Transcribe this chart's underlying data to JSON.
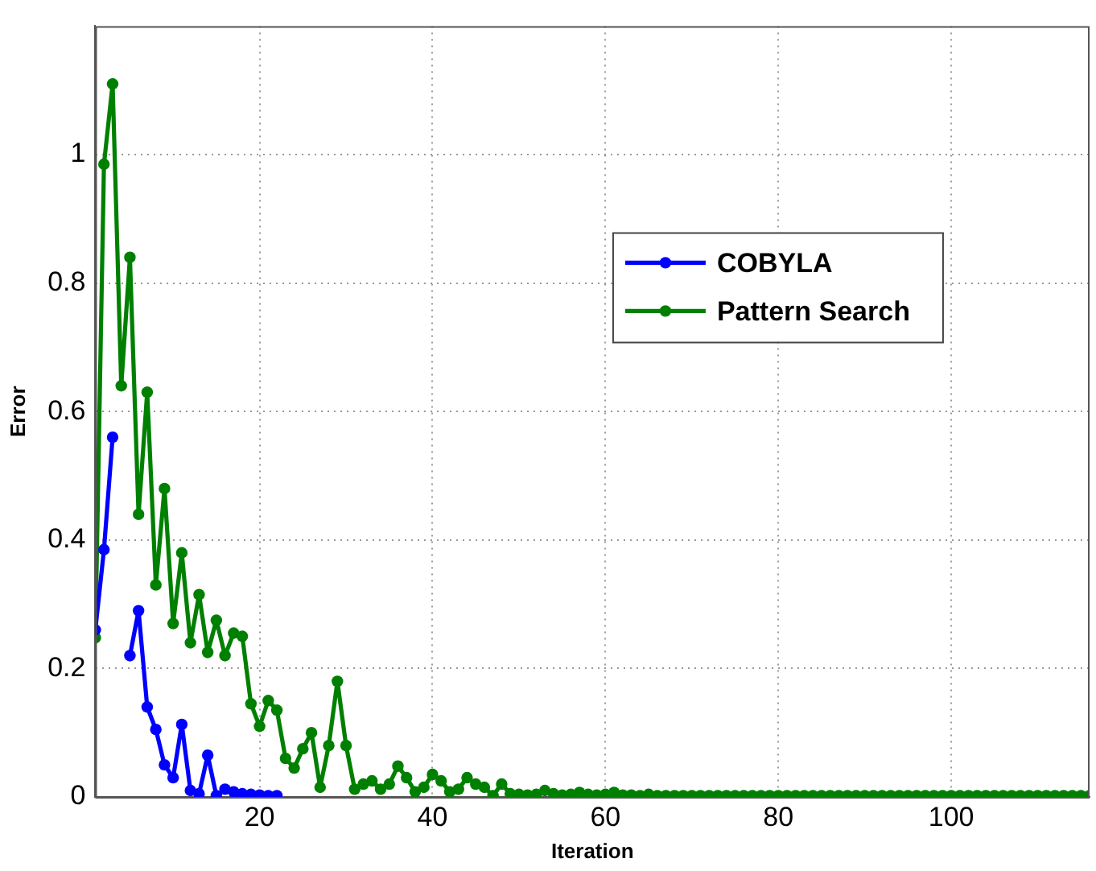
{
  "chart_data": {
    "type": "line",
    "xlabel": "Iteration",
    "ylabel": "Error",
    "xlim": [
      1,
      116
    ],
    "xticks": [
      20,
      40,
      60,
      80,
      100
    ],
    "ylim": [
      0,
      1.2
    ],
    "yticks": [
      0,
      0.2,
      0.4,
      0.6,
      0.8,
      1
    ],
    "grid": true,
    "legend": "right",
    "marker": "circle",
    "line_style": "solid",
    "series": [
      {
        "name": "COBYLA",
        "color": "#0000ff",
        "x": [
          1,
          2,
          3,
          4,
          5,
          6,
          7,
          8,
          9,
          10,
          11,
          12,
          13,
          14,
          15,
          16,
          17,
          18,
          19,
          20,
          21,
          22
        ],
        "values": [
          0.26,
          0.385,
          0.56,
          null,
          0.22,
          0.29,
          0.14,
          0.105,
          0.05,
          0.03,
          0.113,
          0.01,
          0.005,
          0.065,
          0.002,
          0.012,
          0.008,
          0.005,
          0.004,
          0.003,
          0.002,
          0.002
        ]
      },
      {
        "name": "Pattern Search",
        "color": "#008000",
        "x": [
          1,
          2,
          3,
          4,
          5,
          6,
          7,
          8,
          9,
          10,
          11,
          12,
          13,
          14,
          15,
          16,
          17,
          18,
          19,
          20,
          21,
          22,
          23,
          24,
          25,
          26,
          27,
          28,
          29,
          30,
          31,
          32,
          33,
          34,
          35,
          36,
          37,
          38,
          39,
          40,
          41,
          42,
          43,
          44,
          45,
          46,
          47,
          48,
          49,
          50,
          51,
          52,
          53,
          54,
          55,
          56,
          57,
          58,
          59,
          60,
          61,
          62,
          63,
          64,
          65,
          66,
          67,
          68,
          69,
          70,
          71,
          72,
          73,
          74,
          75,
          76,
          77,
          78,
          79,
          80,
          81,
          82,
          83,
          84,
          85,
          86,
          87,
          88,
          89,
          90,
          91,
          92,
          93,
          94,
          95,
          96,
          97,
          98,
          99,
          100,
          101,
          102,
          103,
          104,
          105,
          106,
          107,
          108,
          109,
          110,
          111,
          112,
          113,
          114,
          115,
          116
        ],
        "values": [
          0.248,
          0.985,
          1.11,
          0.64,
          0.84,
          0.44,
          0.63,
          0.33,
          0.48,
          0.27,
          0.38,
          0.24,
          0.315,
          0.225,
          0.275,
          0.22,
          0.255,
          0.25,
          0.145,
          0.11,
          0.15,
          0.135,
          0.06,
          0.045,
          0.075,
          0.1,
          0.015,
          0.08,
          0.18,
          0.08,
          0.012,
          0.02,
          0.025,
          0.012,
          0.02,
          0.048,
          0.03,
          0.008,
          0.015,
          0.035,
          0.025,
          0.008,
          0.012,
          0.03,
          0.02,
          0.015,
          0.002,
          0.02,
          0.005,
          0.004,
          0.003,
          0.004,
          0.01,
          0.005,
          0.003,
          0.004,
          0.007,
          0.004,
          0.003,
          0.004,
          0.007,
          0.003,
          0.003,
          0.002,
          0.004,
          0.002,
          0.002,
          0.002,
          0.002,
          0.002,
          0.002,
          0.002,
          0.002,
          0.002,
          0.002,
          0.002,
          0.002,
          0.002,
          0.002,
          0.002,
          0.002,
          0.002,
          0.002,
          0.002,
          0.002,
          0.002,
          0.002,
          0.002,
          0.002,
          0.002,
          0.002,
          0.002,
          0.002,
          0.002,
          0.002,
          0.002,
          0.002,
          0.002,
          0.002,
          0.002,
          0.002,
          0.002,
          0.002,
          0.002,
          0.002,
          0.002,
          0.002,
          0.002,
          0.002,
          0.002,
          0.002,
          0.002,
          0.002,
          0.002,
          0.002,
          0.002
        ]
      }
    ]
  }
}
